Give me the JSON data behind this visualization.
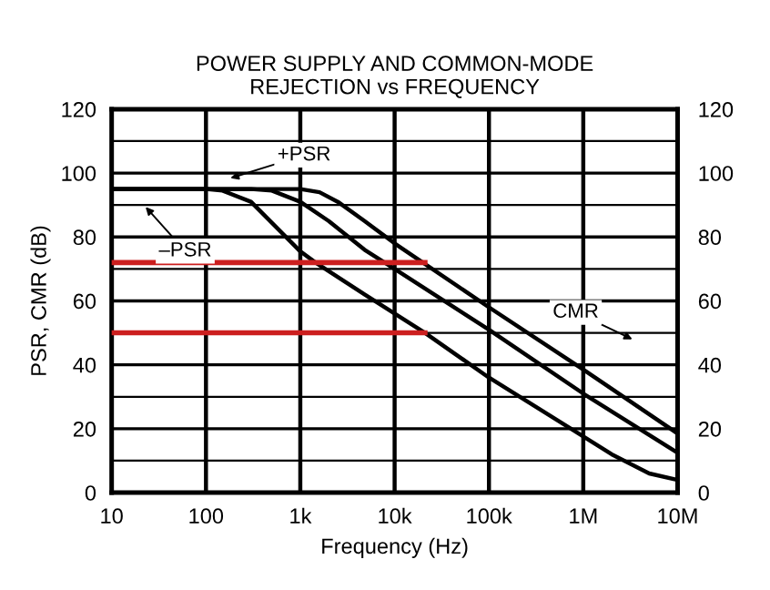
{
  "chart_data": {
    "type": "line",
    "title": "POWER SUPPLY AND COMMON-MODE\nREJECTION vs FREQUENCY",
    "xlabel": "Frequency (Hz)",
    "ylabel": "PSR, CMR (dB)",
    "log": "x",
    "xlim": [
      10,
      10000000
    ],
    "xticks": [
      10,
      100,
      {
        "value": 1000,
        "label": "1k"
      },
      {
        "value": 10000,
        "label": "10k"
      },
      {
        "value": 100000,
        "label": "100k"
      },
      {
        "value": 1000000,
        "label": "1M"
      },
      {
        "value": 10000000,
        "label": "10M"
      }
    ],
    "ylim": [
      0,
      120
    ],
    "yticks": [
      0,
      20,
      40,
      60,
      80,
      100,
      120
    ],
    "y2lim": [
      0,
      120
    ],
    "y2ticks": [
      0,
      20,
      40,
      60,
      80,
      100,
      120
    ],
    "grid": true,
    "legend": false,
    "series": [
      {
        "color": "#000000",
        "x": [
          10,
          1000,
          1600,
          2500,
          4800,
          10000,
          100000,
          1000000,
          10000000
        ],
        "values": [
          95,
          95,
          94,
          91,
          85,
          78,
          58,
          38.5,
          18.5
        ]
      },
      {
        "color": "#000000",
        "x": [
          10,
          300,
          500,
          1000,
          2000,
          4800,
          10000,
          100000,
          1000000,
          10000000
        ],
        "values": [
          95,
          95,
          94.5,
          91,
          85,
          76,
          70,
          51,
          31,
          12.5
        ]
      },
      {
        "color": "#000000",
        "x": [
          10,
          100,
          150,
          300,
          1000,
          1450,
          4800,
          21000,
          100000,
          740000,
          2000000,
          5000000,
          10000000
        ],
        "values": [
          95,
          95,
          94.5,
          91,
          75.5,
          72,
          62,
          50,
          36,
          20,
          12,
          6,
          4
        ]
      },
      {
        "color": "#cc1f1f",
        "x": [
          10,
          21000
        ],
        "values": [
          72,
          72
        ]
      },
      {
        "color": "#cc1f1f",
        "x": [
          10,
          21000
        ],
        "values": [
          50,
          50
        ]
      }
    ],
    "annotations": [
      "+PSR",
      "–PSR",
      "CMR"
    ]
  }
}
